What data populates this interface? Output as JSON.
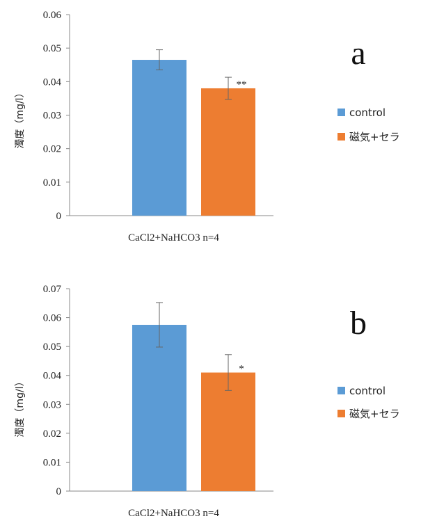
{
  "chart_data": [
    {
      "type": "bar",
      "panel_label": "a",
      "ylabel": "濁度（mg/l）",
      "category_label": "CaCl2+NaHCO3  n=4",
      "ylim": [
        0,
        0.06
      ],
      "yticks": [
        "0",
        "0.01",
        "0.02",
        "0.03",
        "0.04",
        "0.05",
        "0.06"
      ],
      "grid": false,
      "legend_position": "right",
      "series": [
        {
          "name": "control",
          "value": 0.0465,
          "error": 0.003,
          "color": "#5b9bd5",
          "annotation": ""
        },
        {
          "name": "磁気+セラ",
          "value": 0.038,
          "error": 0.0033,
          "color": "#ed7d31",
          "annotation": "**"
        }
      ]
    },
    {
      "type": "bar",
      "panel_label": "b",
      "ylabel": "濁度（mg/l）",
      "category_label": "CaCl2+NaHCO3  n=4",
      "ylim": [
        0,
        0.07
      ],
      "yticks": [
        "0",
        "0.01",
        "0.02",
        "0.03",
        "0.04",
        "0.05",
        "0.06",
        "0.07"
      ],
      "grid": false,
      "legend_position": "right",
      "series": [
        {
          "name": "control",
          "value": 0.0575,
          "error": 0.0077,
          "color": "#5b9bd5",
          "annotation": ""
        },
        {
          "name": "磁気+セラ",
          "value": 0.041,
          "error": 0.0062,
          "color": "#ed7d31",
          "annotation": "*"
        }
      ]
    }
  ]
}
